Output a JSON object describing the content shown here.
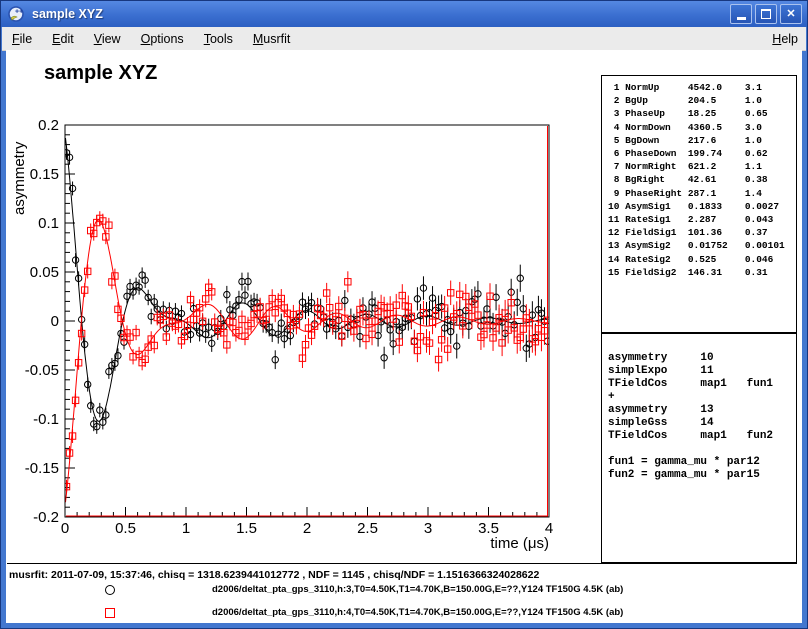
{
  "window": {
    "title": "sample XYZ",
    "icon": "root-logo-icon",
    "buttons": {
      "minimize": "minimize",
      "maximize": "maximize",
      "close": "close"
    }
  },
  "menu": {
    "items": [
      "File",
      "Edit",
      "View",
      "Options",
      "Tools",
      "Musrfit"
    ],
    "right_items": [
      "Help"
    ]
  },
  "chart_data": {
    "type": "scatter",
    "title": "sample XYZ",
    "xlabel": "time (μs)",
    "ylabel": "asymmetry",
    "xlim": [
      0,
      4
    ],
    "ylim": [
      -0.2,
      0.2
    ],
    "x_major_ticks": [
      0,
      0.5,
      1,
      1.5,
      2,
      2.5,
      3,
      3.5,
      4
    ],
    "x_major_labels": [
      "0",
      "0.5",
      "1",
      "1.5",
      "2",
      "2.5",
      "3",
      "3.5",
      "4"
    ],
    "x_minor_step": 0.1,
    "y_major_ticks": [
      0.2,
      0.15,
      0.1,
      0.05,
      0,
      -0.05,
      -0.1,
      -0.15,
      -0.2
    ],
    "y_major_labels": [
      "0.2",
      "0.15",
      "0.1",
      "0.05",
      "0",
      "-0.05",
      "-0.1",
      "-0.15",
      "-0.2"
    ],
    "y_minor_step": 0.01,
    "grid": false,
    "legend_position": "bottom",
    "gamma_mu_MHz_per_G": 0.0135538,
    "sampling": {
      "dt": 0.025,
      "t_max": 4,
      "noise_sigma": 0.009,
      "error_bar_base": 0.007,
      "seed": 13
    },
    "series": [
      {
        "name": "d2006/deltat_pta_gps_3110,h:3,T0=4.50K,T1=4.70K,B=150.00G,E=??,Y124 TF150G 4.5K (ab)",
        "color": "#000000",
        "marker": "circle",
        "model": {
          "A1": 0.1833,
          "lambda1": 2.287,
          "field1_G": 101.36,
          "A2": 0.01752,
          "sigma2": 0.525,
          "field2_G": 146.31,
          "phase_deg": 18.25
        }
      },
      {
        "name": "d2006/deltat_pta_gps_3110,h:4,T0=4.50K,T1=4.70K,B=150.00G,E=??,Y124 TF150G 4.5K (ab)",
        "color": "#ff0000",
        "marker": "square",
        "model": {
          "A1": 0.1833,
          "lambda1": 2.287,
          "field1_G": 101.36,
          "A2": 0.01752,
          "sigma2": 0.525,
          "field2_G": 146.31,
          "phase_deg": 199.74
        }
      }
    ]
  },
  "parameters": {
    "rows": [
      {
        "no": 1,
        "name": "NormUp",
        "value": "4542.0",
        "error": "3.1"
      },
      {
        "no": 2,
        "name": "BgUp",
        "value": "204.5",
        "error": "1.0"
      },
      {
        "no": 3,
        "name": "PhaseUp",
        "value": "18.25",
        "error": "0.65"
      },
      {
        "no": 4,
        "name": "NormDown",
        "value": "4360.5",
        "error": "3.0"
      },
      {
        "no": 5,
        "name": "BgDown",
        "value": "217.6",
        "error": "1.0"
      },
      {
        "no": 6,
        "name": "PhaseDown",
        "value": "199.74",
        "error": "0.62"
      },
      {
        "no": 7,
        "name": "NormRight",
        "value": "621.2",
        "error": "1.1"
      },
      {
        "no": 8,
        "name": "BgRight",
        "value": "42.61",
        "error": "0.38"
      },
      {
        "no": 9,
        "name": "PhaseRight",
        "value": "287.1",
        "error": "1.4"
      },
      {
        "no": 10,
        "name": "AsymSig1",
        "value": "0.1833",
        "error": "0.0027"
      },
      {
        "no": 11,
        "name": "RateSig1",
        "value": "2.287",
        "error": "0.043"
      },
      {
        "no": 12,
        "name": "FieldSig1",
        "value": "101.36",
        "error": "0.37"
      },
      {
        "no": 13,
        "name": "AsymSig2",
        "value": "0.01752",
        "error": "0.00101"
      },
      {
        "no": 14,
        "name": "RateSig2",
        "value": "0.525",
        "error": "0.046"
      },
      {
        "no": 15,
        "name": "FieldSig2",
        "value": "146.31",
        "error": "0.31"
      }
    ]
  },
  "theory": {
    "lines": [
      "asymmetry     10",
      "simplExpo     11",
      "TFieldCos     map1   fun1",
      "+",
      "asymmetry     13",
      "simpleGss     14",
      "TFieldCos     map1   fun2",
      "",
      "fun1 = gamma_mu * par12",
      "fun2 = gamma_mu * par15"
    ]
  },
  "footer": {
    "status": "musrfit: 2011-07-09, 15:37:46, chisq = 1318.6239441012772 , NDF = 1145 , chisq/NDF = 1.1516366324028622",
    "legend": [
      {
        "marker": "circle",
        "color": "#000000",
        "label": "d2006/deltat_pta_gps_3110,h:3,T0=4.50K,T1=4.70K,B=150.00G,E=??,Y124 TF150G 4.5K (ab)"
      },
      {
        "marker": "square",
        "color": "#ff0000",
        "label": "d2006/deltat_pta_gps_3110,h:4,T0=4.50K,T1=4.70K,B=150.00G,E=??,Y124 TF150G 4.5K (ab)"
      }
    ]
  }
}
